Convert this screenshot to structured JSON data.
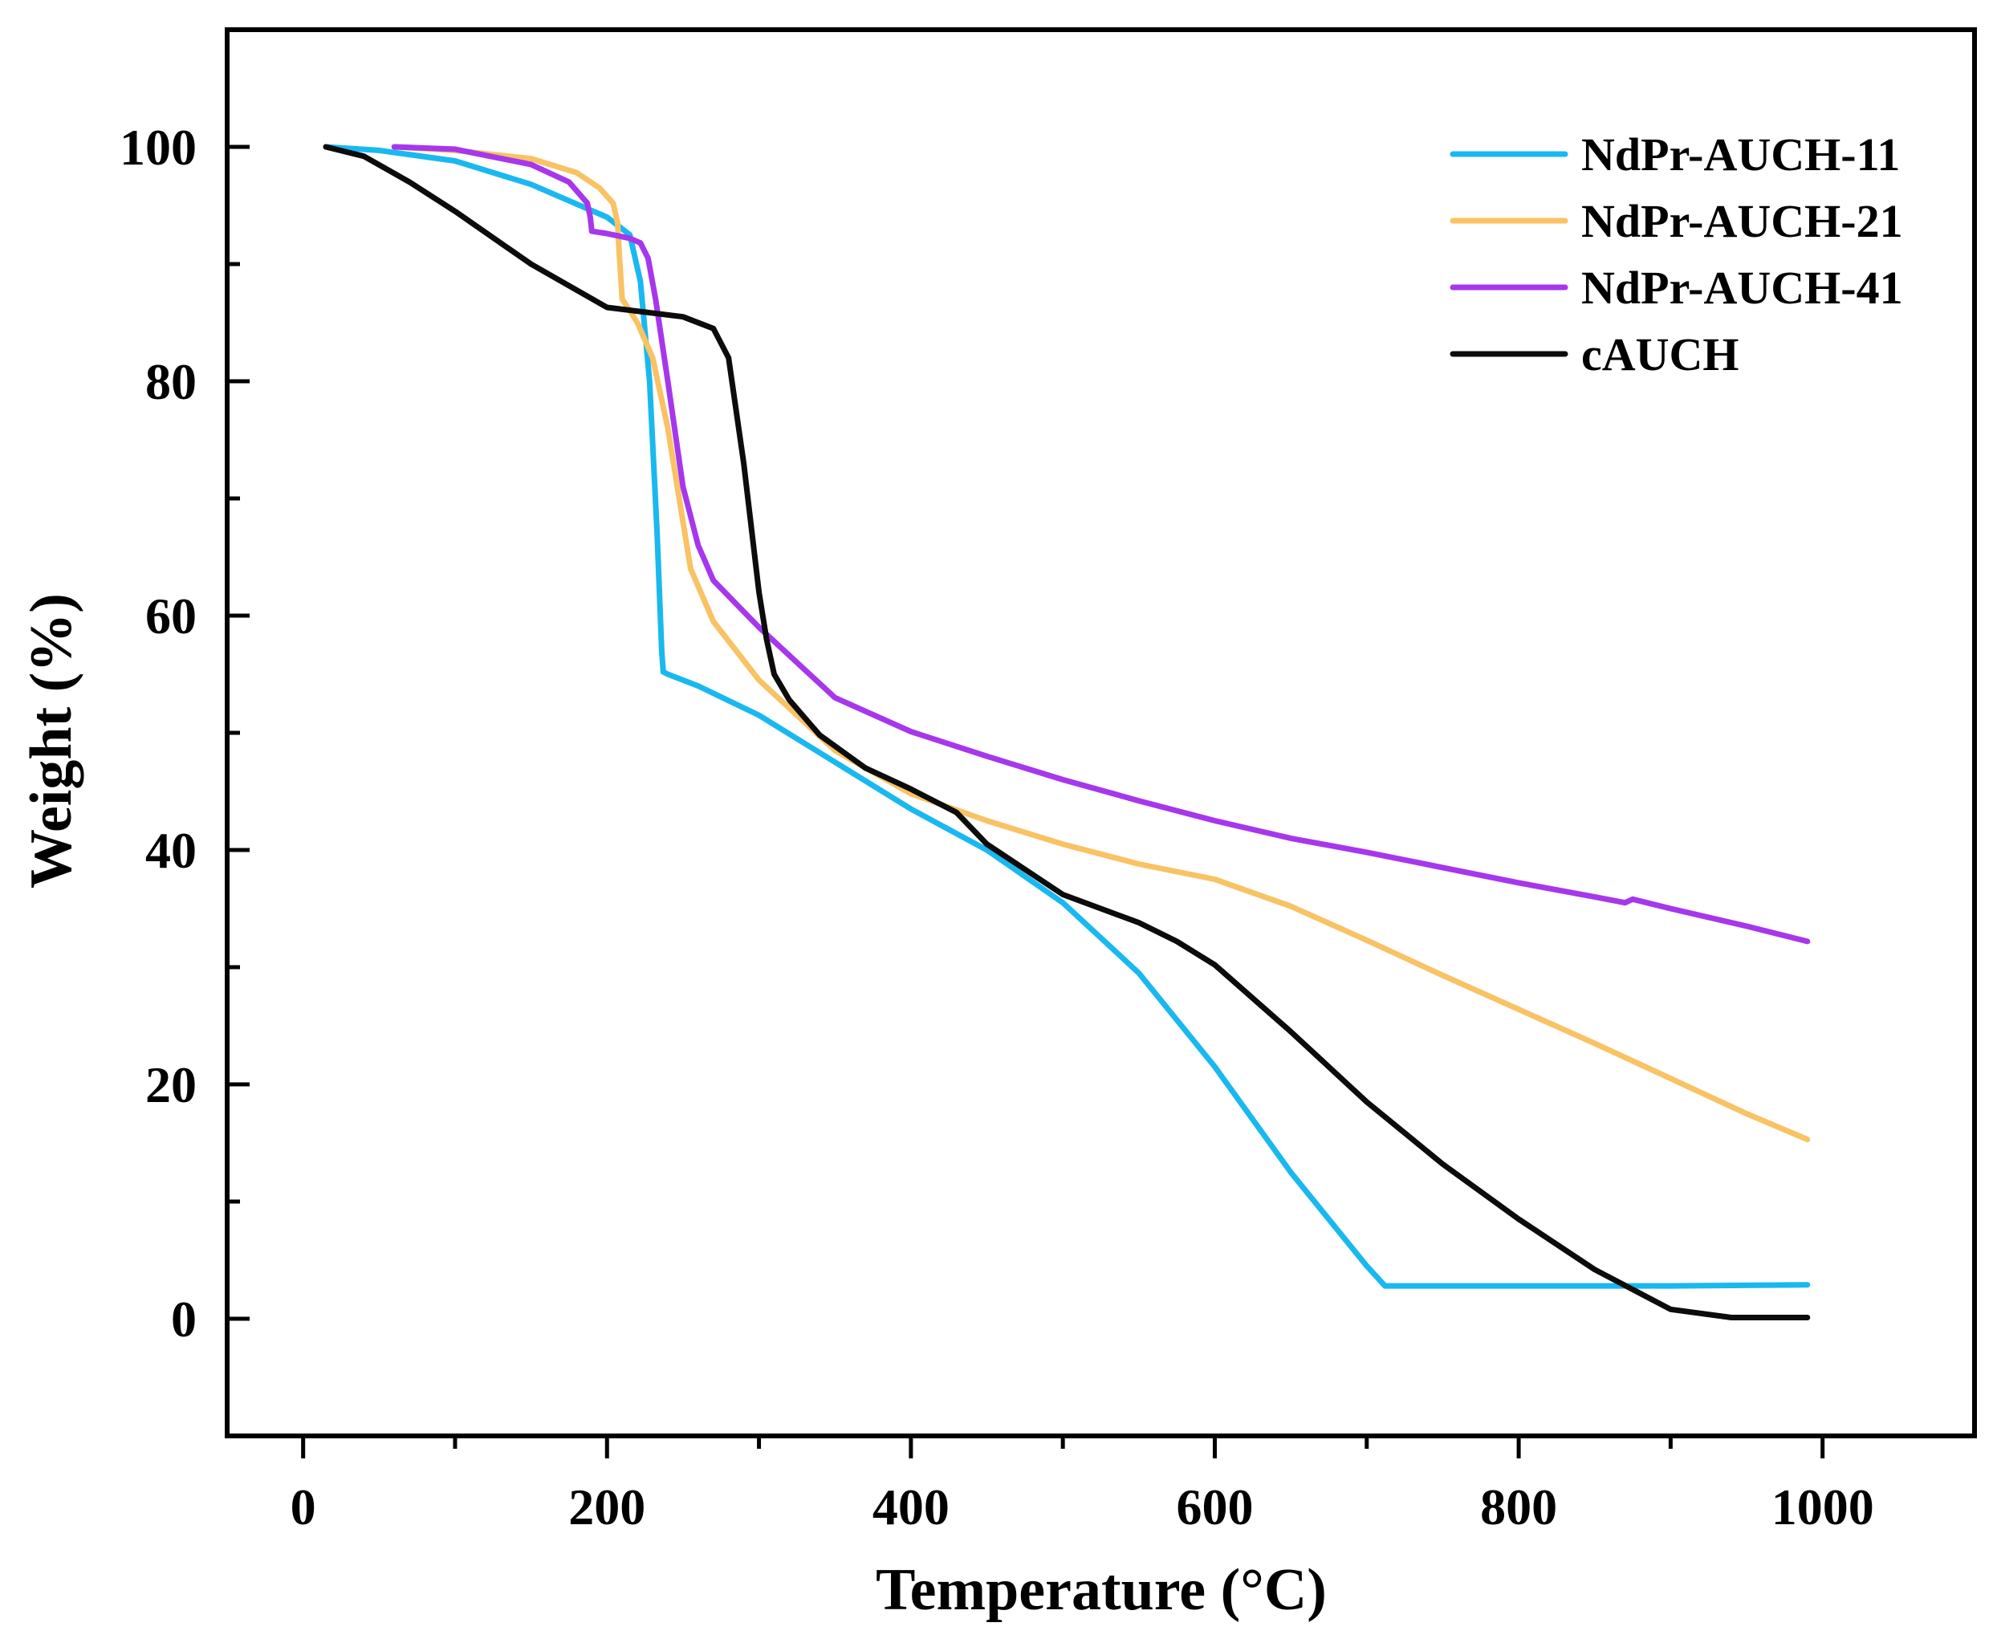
{
  "chart_data": {
    "type": "line",
    "title": "",
    "xlabel": "Temperature (°C)",
    "ylabel": "Weight (%)",
    "xlim": [
      -50,
      1100
    ],
    "ylim": [
      -10,
      110
    ],
    "xticks": [
      0,
      200,
      400,
      600,
      800,
      1000
    ],
    "yticks": [
      0,
      20,
      40,
      60,
      80,
      100
    ],
    "x_tick_labels": [
      "0",
      "200",
      "400",
      "600",
      "800",
      "1000"
    ],
    "y_tick_labels": [
      "0",
      "20",
      "40",
      "60",
      "80",
      "100"
    ],
    "grid": false,
    "legend_position": "top-right",
    "series": [
      {
        "name": "NdPr-AUCH-11",
        "color": "#1ab8f0",
        "x": [
          15,
          50,
          100,
          150,
          200,
          215,
          222,
          228,
          233,
          236,
          237,
          240,
          260,
          300,
          350,
          400,
          450,
          500,
          550,
          600,
          650,
          700,
          712,
          720,
          800,
          900,
          990
        ],
        "y": [
          100,
          99.7,
          98.8,
          96.8,
          94.0,
          92.5,
          88.5,
          80,
          67,
          57,
          55.2,
          55.0,
          54.0,
          51.5,
          47.5,
          43.5,
          40,
          35.5,
          29.5,
          21.5,
          12.5,
          4.5,
          2.8,
          2.8,
          2.8,
          2.8,
          2.9
        ]
      },
      {
        "name": "NdPr-AUCH-21",
        "color": "#f9c264",
        "x": [
          60,
          100,
          150,
          180,
          195,
          204,
          207,
          208,
          210,
          215,
          220,
          230,
          240,
          250,
          255,
          270,
          300,
          350,
          400,
          450,
          500,
          550,
          600,
          650,
          700,
          750,
          800,
          850,
          900,
          950,
          990
        ],
        "y": [
          100,
          99.7,
          99.0,
          97.8,
          96.5,
          95.2,
          93.5,
          91,
          87,
          86,
          85,
          82,
          76,
          68,
          64,
          59.5,
          54.5,
          48.5,
          44.8,
          42.5,
          40.5,
          38.8,
          37.5,
          35.2,
          32.3,
          29.3,
          26.4,
          23.5,
          20.5,
          17.5,
          15.3
        ]
      },
      {
        "name": "NdPr-AUCH-41",
        "color": "#a637ed",
        "x": [
          60,
          100,
          150,
          175,
          187,
          189,
          190,
          200,
          215,
          222,
          227,
          232,
          240,
          250,
          260,
          270,
          300,
          350,
          400,
          450,
          500,
          550,
          600,
          650,
          700,
          750,
          800,
          850,
          870,
          875,
          900,
          950,
          990
        ],
        "y": [
          100,
          99.8,
          98.5,
          97.0,
          95.2,
          94,
          92.8,
          92.6,
          92.2,
          91.8,
          90.5,
          87,
          80,
          71,
          66,
          63,
          59,
          53,
          50.1,
          48,
          46,
          44.2,
          42.5,
          41,
          39.8,
          38.5,
          37.2,
          36,
          35.5,
          35.8,
          35,
          33.5,
          32.2
        ]
      },
      {
        "name": "cAUCH",
        "color": "#0c0c0c",
        "x": [
          15,
          40,
          70,
          100,
          150,
          200,
          250,
          270,
          280,
          290,
          300,
          305,
          310,
          320,
          340,
          370,
          400,
          430,
          450,
          500,
          550,
          575,
          600,
          650,
          700,
          750,
          800,
          850,
          900,
          940,
          950,
          990
        ],
        "y": [
          100,
          99.2,
          97,
          94.5,
          90,
          86.3,
          85.5,
          84.5,
          82,
          73,
          62,
          58,
          55,
          52.8,
          49.8,
          47,
          45.2,
          43.2,
          40.5,
          36.2,
          33.8,
          32.2,
          30.2,
          24.5,
          18.5,
          13.2,
          8.5,
          4.2,
          0.8,
          0.1,
          0.1,
          0.1
        ]
      }
    ]
  }
}
